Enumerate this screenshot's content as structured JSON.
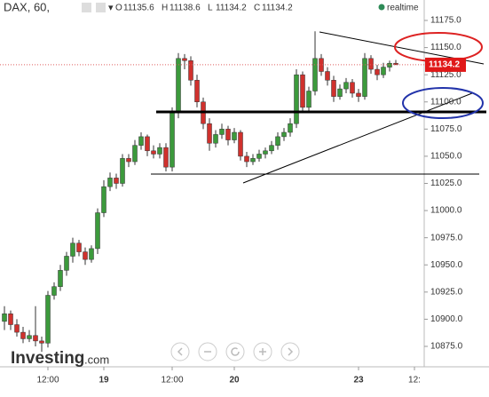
{
  "chart_data": {
    "type": "candlestick",
    "title": "DAX, 60,",
    "status": "realtime",
    "ohlc_labels": [
      "O",
      "H",
      "L",
      "C"
    ],
    "watermark": [
      "Investing",
      ".com"
    ],
    "up_color": "#3c9a3c",
    "down_color": "#d0312d",
    "ylim": [
      10856.2,
      11193.8
    ],
    "yticks": [
      {
        "value": 10875,
        "label": "10875.0"
      },
      {
        "value": 10900,
        "label": "10900.0"
      },
      {
        "value": 10925,
        "label": "10925.0"
      },
      {
        "value": 10950,
        "label": "10950.0"
      },
      {
        "value": 10975,
        "label": "10975.0"
      },
      {
        "value": 11000,
        "label": "11000.0"
      },
      {
        "value": 11025,
        "label": "11025.0"
      },
      {
        "value": 11050,
        "label": "11050.0"
      },
      {
        "value": 11075,
        "label": "11075.0"
      },
      {
        "value": 11100,
        "label": "11100.0"
      },
      {
        "value": 11125,
        "label": "11125.0"
      },
      {
        "value": 11150,
        "label": "11150.0"
      },
      {
        "value": 11175,
        "label": "11175.0"
      }
    ],
    "categories": [
      null,
      null,
      null,
      null,
      null,
      null,
      null,
      "12:00",
      null,
      null,
      null,
      null,
      null,
      null,
      null,
      null,
      "19",
      null,
      null,
      null,
      null,
      null,
      null,
      null,
      null,
      null,
      null,
      "12:00",
      null,
      null,
      null,
      null,
      null,
      null,
      null,
      null,
      null,
      "20",
      null,
      null,
      null,
      null,
      null,
      null,
      null,
      null,
      null,
      null,
      null,
      null,
      null,
      null,
      null,
      null,
      null,
      null,
      null,
      "23",
      null,
      null,
      null,
      null,
      null,
      null,
      null,
      null,
      "12:",
      null
    ],
    "open": [
      10898,
      10905,
      10895,
      10888,
      10882,
      10885,
      10880,
      10878,
      10922,
      10930,
      10945,
      10958,
      10970,
      10962,
      10955,
      10965,
      10998,
      11022,
      11030,
      11025,
      11048,
      11045,
      11060,
      11068,
      11055,
      11052,
      11058,
      11040,
      11090,
      11140,
      11138,
      11120,
      11100,
      11080,
      11062,
      11070,
      11075,
      11065,
      11072,
      11050,
      11045,
      11048,
      11052,
      11055,
      11060,
      11068,
      11072,
      11080,
      11125,
      11095,
      11110,
      11140,
      11128,
      11120,
      11105,
      11112,
      11118,
      11108,
      11105,
      11140,
      11130,
      11125,
      11132,
      11135.6,
      null,
      null,
      null,
      null
    ],
    "high": [
      10912,
      10908,
      10900,
      10893,
      10890,
      10912,
      10884,
      10926,
      10934,
      10950,
      10962,
      10975,
      10973,
      10966,
      10968,
      11002,
      11028,
      11035,
      11034,
      11052,
      11052,
      11065,
      11072,
      11070,
      11060,
      11062,
      11062,
      11095,
      11145,
      11144,
      11142,
      11125,
      11104,
      11085,
      11074,
      11080,
      11078,
      11076,
      11074,
      11054,
      11052,
      11056,
      11058,
      11064,
      11072,
      11076,
      11085,
      11130,
      11128,
      11114,
      11165,
      11144,
      11132,
      11124,
      11116,
      11122,
      11121,
      11112,
      11145,
      11143,
      11134,
      11136,
      11138,
      11138.6,
      null,
      null,
      null,
      null
    ],
    "low": [
      10890,
      10890,
      10884,
      10878,
      10879,
      10875,
      10870,
      10874,
      10918,
      10926,
      10940,
      10952,
      10958,
      10950,
      10952,
      10960,
      10994,
      11018,
      11020,
      11022,
      11040,
      11042,
      11056,
      11050,
      11048,
      11048,
      11036,
      11036,
      11085,
      11130,
      11115,
      11095,
      11075,
      11055,
      11058,
      11066,
      11060,
      11062,
      11046,
      11040,
      11042,
      11045,
      11048,
      11052,
      11056,
      11064,
      11068,
      11076,
      11090,
      11092,
      11106,
      11124,
      11115,
      11100,
      11102,
      11108,
      11104,
      11100,
      11102,
      11126,
      11120,
      11122,
      11128,
      11134.2,
      null,
      null,
      null,
      null
    ],
    "close": [
      10905,
      10895,
      10888,
      10882,
      10885,
      10880,
      10878,
      10922,
      10930,
      10945,
      10958,
      10970,
      10962,
      10955,
      10965,
      10998,
      11022,
      11030,
      11025,
      11048,
      11045,
      11060,
      11068,
      11055,
      11052,
      11058,
      11040,
      11090,
      11140,
      11138,
      11120,
      11100,
      11080,
      11062,
      11070,
      11075,
      11065,
      11072,
      11050,
      11045,
      11048,
      11052,
      11055,
      11060,
      11068,
      11072,
      11080,
      11125,
      11095,
      11110,
      11140,
      11128,
      11120,
      11105,
      11112,
      11118,
      11108,
      11105,
      11140,
      11130,
      11125,
      11132,
      11135.6,
      11134.2,
      null,
      null,
      null,
      null
    ]
  }
}
